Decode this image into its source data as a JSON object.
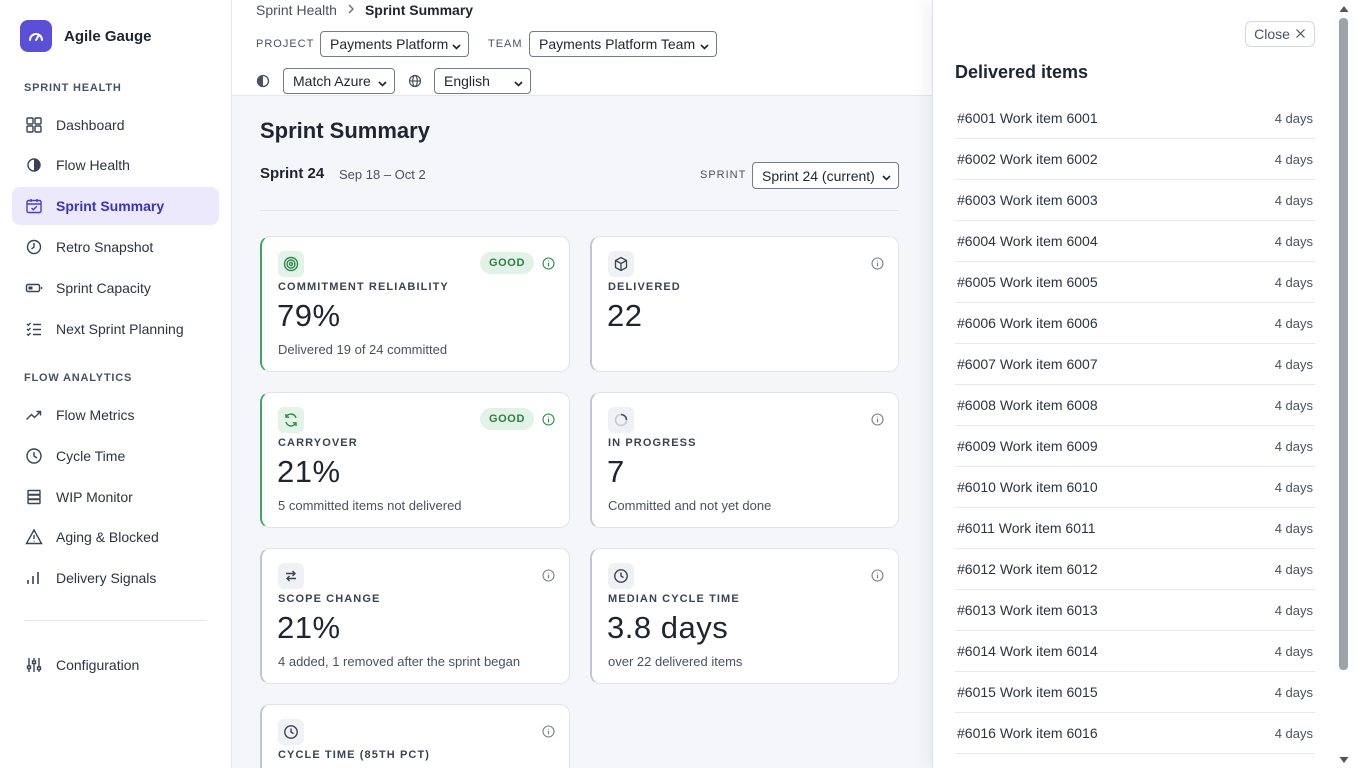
{
  "app": {
    "name": "Agile Gauge"
  },
  "sidebar": {
    "sections": [
      {
        "label": "SPRINT HEALTH",
        "items": [
          {
            "label": "Dashboard",
            "icon": "grid-icon"
          },
          {
            "label": "Flow Health",
            "icon": "half-circle-icon"
          },
          {
            "label": "Sprint Summary",
            "icon": "calendar-check-icon",
            "active": true
          },
          {
            "label": "Retro Snapshot",
            "icon": "history-icon"
          },
          {
            "label": "Sprint Capacity",
            "icon": "battery-icon"
          },
          {
            "label": "Next Sprint Planning",
            "icon": "checklist-icon"
          }
        ]
      },
      {
        "label": "FLOW ANALYTICS",
        "items": [
          {
            "label": "Flow Metrics",
            "icon": "trending-up-icon"
          },
          {
            "label": "Cycle Time",
            "icon": "clock-icon"
          },
          {
            "label": "WIP Monitor",
            "icon": "stack-icon"
          },
          {
            "label": "Aging & Blocked",
            "icon": "warning-icon"
          },
          {
            "label": "Delivery Signals",
            "icon": "bars-icon"
          }
        ]
      }
    ],
    "footer_item": {
      "label": "Configuration",
      "icon": "sliders-icon"
    }
  },
  "header": {
    "breadcrumb": {
      "parent": "Sprint Health",
      "current": "Sprint Summary"
    },
    "project_label": "PROJECT",
    "project_value": "Payments Platform",
    "team_label": "TEAM",
    "team_value": "Payments Platform Team",
    "theme_value": "Match Azure",
    "language_value": "English"
  },
  "main": {
    "title": "Sprint Summary",
    "sprint_name": "Sprint 24",
    "sprint_dates": "Sep 18 – Oct 2",
    "sprint_label": "SPRINT",
    "sprint_select": "Sprint 24 (current)",
    "cards": [
      {
        "title": "COMMITMENT RELIABILITY",
        "value": "79%",
        "sub": "Delivered 19 of 24 committed",
        "badge": "GOOD",
        "icon": "target-icon"
      },
      {
        "title": "DELIVERED",
        "value": "22",
        "sub": "",
        "badge": "",
        "icon": "box-icon"
      },
      {
        "title": "CARRYOVER",
        "value": "21%",
        "sub": "5 committed items not delivered",
        "badge": "GOOD",
        "icon": "refresh-icon"
      },
      {
        "title": "IN PROGRESS",
        "value": "7",
        "sub": "Committed and not yet done",
        "badge": "",
        "icon": "spinner-icon"
      },
      {
        "title": "SCOPE CHANGE",
        "value": "21%",
        "sub": "4 added, 1 removed after the sprint began",
        "badge": "",
        "icon": "swap-icon"
      },
      {
        "title": "MEDIAN CYCLE TIME",
        "value": "3.8 days",
        "sub": "over 22 delivered items",
        "badge": "",
        "icon": "clock-icon"
      },
      {
        "title": "CYCLE TIME (85TH PCT)",
        "value": "",
        "sub": "",
        "badge": "",
        "icon": "clock-icon"
      }
    ]
  },
  "drawer": {
    "close_label": "Close",
    "title": "Delivered items",
    "items": [
      {
        "name": "#6001 Work item 6001",
        "duration": "4 days"
      },
      {
        "name": "#6002 Work item 6002",
        "duration": "4 days"
      },
      {
        "name": "#6003 Work item 6003",
        "duration": "4 days"
      },
      {
        "name": "#6004 Work item 6004",
        "duration": "4 days"
      },
      {
        "name": "#6005 Work item 6005",
        "duration": "4 days"
      },
      {
        "name": "#6006 Work item 6006",
        "duration": "4 days"
      },
      {
        "name": "#6007 Work item 6007",
        "duration": "4 days"
      },
      {
        "name": "#6008 Work item 6008",
        "duration": "4 days"
      },
      {
        "name": "#6009 Work item 6009",
        "duration": "4 days"
      },
      {
        "name": "#6010 Work item 6010",
        "duration": "4 days"
      },
      {
        "name": "#6011 Work item 6011",
        "duration": "4 days"
      },
      {
        "name": "#6012 Work item 6012",
        "duration": "4 days"
      },
      {
        "name": "#6013 Work item 6013",
        "duration": "4 days"
      },
      {
        "name": "#6014 Work item 6014",
        "duration": "4 days"
      },
      {
        "name": "#6015 Work item 6015",
        "duration": "4 days"
      },
      {
        "name": "#6016 Work item 6016",
        "duration": "4 days"
      }
    ]
  },
  "colors": {
    "accent": "#5b4fd8",
    "good": "#3fa564",
    "active_bg": "#ebe9fb"
  }
}
